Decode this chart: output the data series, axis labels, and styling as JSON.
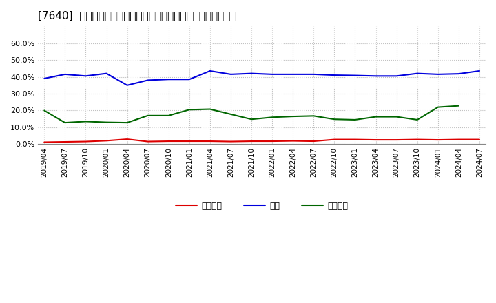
{
  "title": "[7640]  売上債権、在庫、買入債務の総資産に対する比率の推移",
  "x_labels": [
    "2019/04",
    "2019/07",
    "2019/10",
    "2020/01",
    "2020/04",
    "2020/07",
    "2020/10",
    "2021/01",
    "2021/04",
    "2021/07",
    "2021/10",
    "2022/01",
    "2022/04",
    "2022/07",
    "2022/10",
    "2023/01",
    "2023/04",
    "2023/07",
    "2023/10",
    "2024/01",
    "2024/04",
    "2024/07"
  ],
  "uriken": [
    0.012,
    0.014,
    0.016,
    0.021,
    0.03,
    0.016,
    0.018,
    0.018,
    0.018,
    0.016,
    0.018,
    0.018,
    0.02,
    0.018,
    0.028,
    0.028,
    0.026,
    0.026,
    0.028,
    0.026,
    0.028,
    0.028
  ],
  "zaiko": [
    0.39,
    0.415,
    0.405,
    0.42,
    0.35,
    0.38,
    0.385,
    0.385,
    0.435,
    0.415,
    0.42,
    0.415,
    0.415,
    0.415,
    0.41,
    0.408,
    0.405,
    0.405,
    0.42,
    0.415,
    0.418,
    0.435
  ],
  "kainyu": [
    0.2,
    0.128,
    0.135,
    0.13,
    0.128,
    0.17,
    0.17,
    0.205,
    0.208,
    0.178,
    0.148,
    0.16,
    0.165,
    0.168,
    0.148,
    0.145,
    0.163,
    0.163,
    0.145,
    0.22,
    0.228,
    null
  ],
  "uriken_label": "売上債権",
  "zaiko_label": "在庫",
  "kainyu_label": "買入債務",
  "uriken_color": "#dd0000",
  "zaiko_color": "#0000dd",
  "kainyu_color": "#006600",
  "ylim": [
    0.0,
    0.7
  ],
  "yticks": [
    0.0,
    0.1,
    0.2,
    0.3,
    0.4,
    0.5,
    0.6
  ],
  "background_color": "#ffffff",
  "grid_color": "#bbbbbb",
  "title_fontsize": 11,
  "tick_fontsize": 7.5,
  "legend_fontsize": 9
}
